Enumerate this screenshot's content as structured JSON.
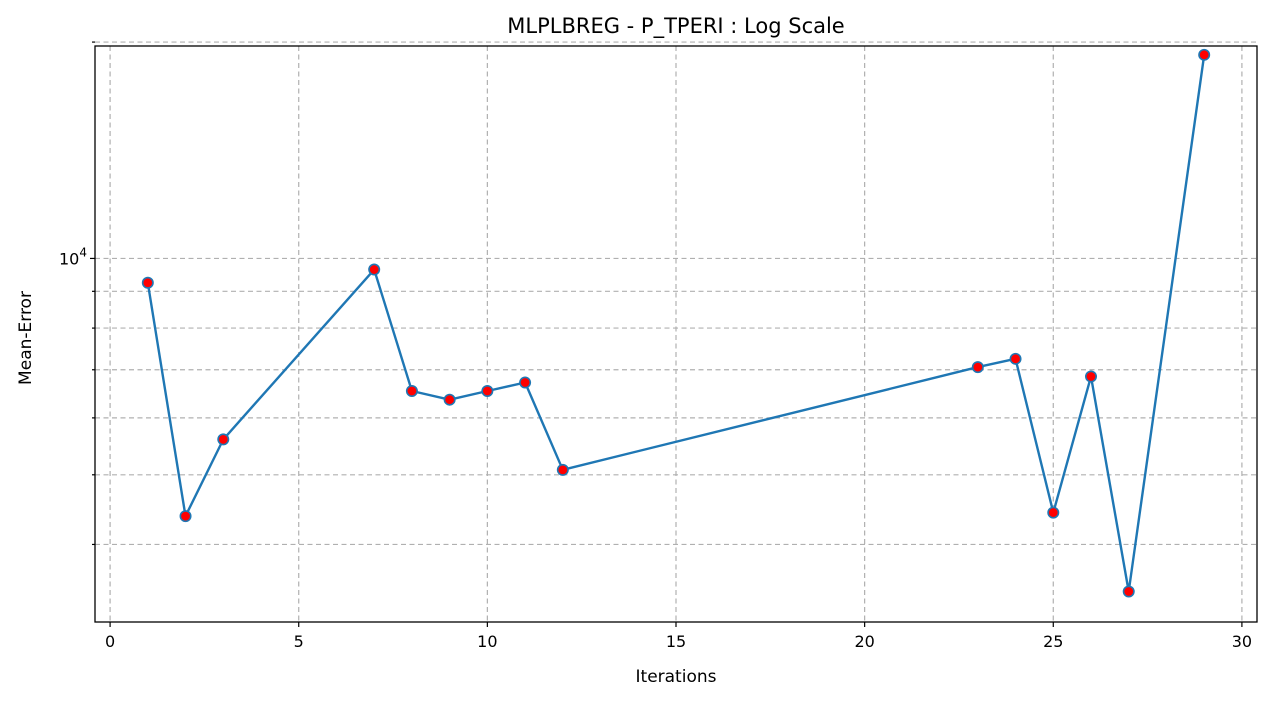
{
  "chart_data": {
    "type": "line",
    "title": "MLPLBREG - P_TPERI : Log Scale",
    "xlabel": "Iterations",
    "ylabel": "Mean-Error",
    "xscale": "linear",
    "yscale": "log",
    "xlim": [
      -0.4,
      30.4
    ],
    "ylim": [
      3120,
      19750
    ],
    "grid": true,
    "x_ticks": [
      0,
      5,
      10,
      15,
      20,
      25,
      30
    ],
    "y_major_ticks": [
      {
        "value": 10000,
        "base": "10",
        "exp": "4"
      }
    ],
    "y_minor_ticks": [
      4000,
      5000,
      6000,
      7000,
      8000,
      9000,
      20000
    ],
    "series": [
      {
        "line_color": "#1f77b4",
        "marker_face": "#ff0000",
        "marker_edge": "#1f77b4",
        "x": [
          1,
          2,
          3,
          7,
          8,
          9,
          10,
          11,
          12,
          23,
          24,
          25,
          26,
          27,
          29
        ],
        "y": [
          9250,
          4380,
          5600,
          9650,
          6540,
          6360,
          6540,
          6720,
          5080,
          7060,
          7250,
          4430,
          6850,
          3440,
          19200
        ]
      }
    ]
  }
}
